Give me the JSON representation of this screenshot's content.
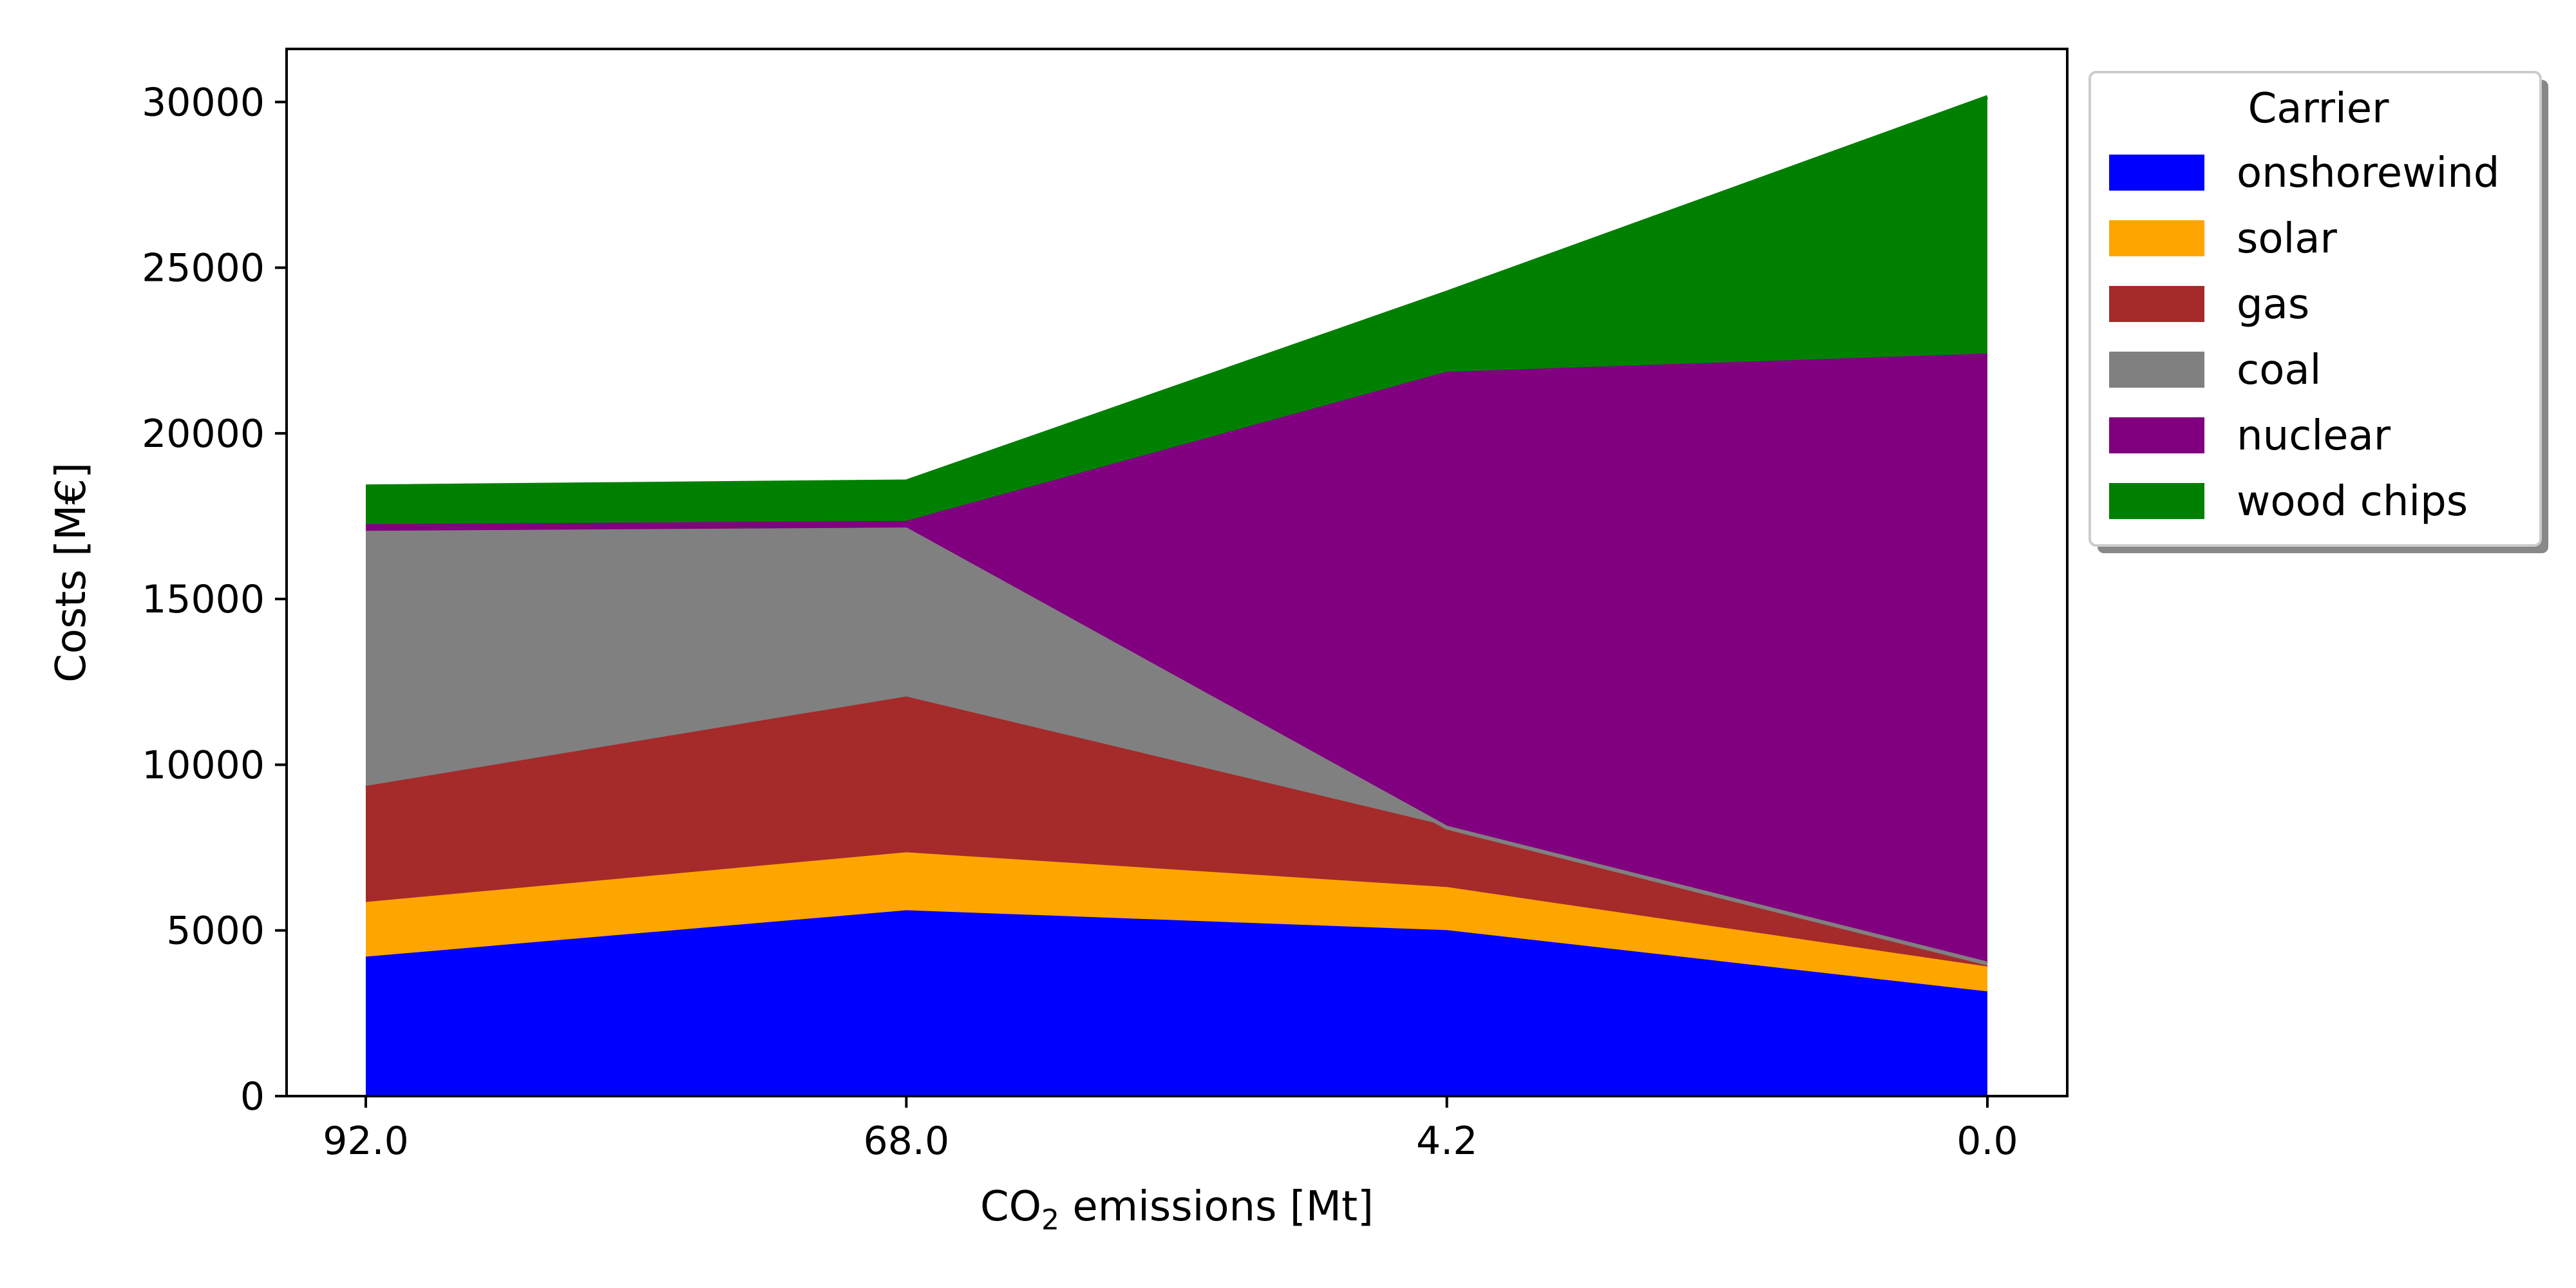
{
  "chart_data": {
    "type": "area",
    "stacked": true,
    "x": [
      "92.0",
      "68.0",
      "4.2",
      "0.0"
    ],
    "xlabel_pre": "CO",
    "xlabel_sub": "2",
    "xlabel_post": " emissions [Mt]",
    "ylabel": "Costs [M€]",
    "ylim": [
      0,
      31600
    ],
    "yticks": [
      0,
      5000,
      10000,
      15000,
      20000,
      25000,
      30000
    ],
    "legend_title": "Carrier",
    "legend_position": "outside-top-right",
    "grid": false,
    "series": [
      {
        "name": "onshorewind",
        "color": "#0000ff",
        "values": [
          4150,
          5550,
          4950,
          3100
        ]
      },
      {
        "name": "solar",
        "color": "#ffa500",
        "values": [
          1650,
          1750,
          1300,
          750
        ]
      },
      {
        "name": "gas",
        "color": "#a52a2a",
        "values": [
          3500,
          4700,
          1850,
          150
        ]
      },
      {
        "name": "coal",
        "color": "#808080",
        "values": [
          7700,
          5100,
          0,
          0
        ]
      },
      {
        "name": "nuclear",
        "color": "#800080",
        "values": [
          200,
          200,
          13700,
          18350
        ]
      },
      {
        "name": "wood chips",
        "color": "#008000",
        "values": [
          1200,
          1250,
          2450,
          7800
        ]
      }
    ]
  }
}
